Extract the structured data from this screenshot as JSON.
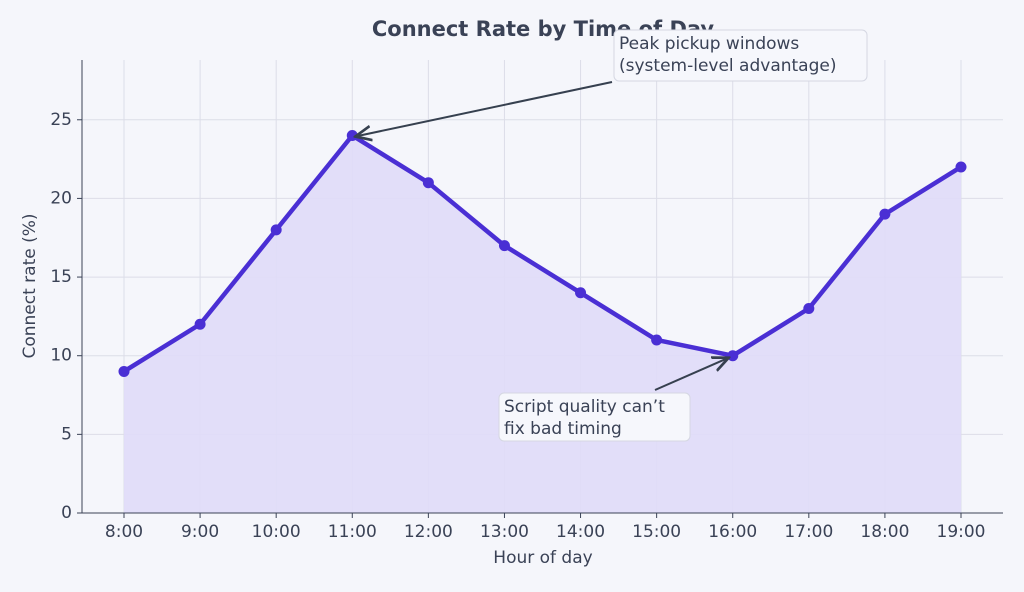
{
  "chart_data": {
    "type": "line",
    "title": "Connect Rate by Time of Day",
    "x_label": "Hour of day",
    "y_label": "Connect rate (%)",
    "categories": [
      "8:00",
      "9:00",
      "10:00",
      "11:00",
      "12:00",
      "13:00",
      "14:00",
      "15:00",
      "16:00",
      "17:00",
      "18:00",
      "19:00"
    ],
    "series": [
      {
        "name": "Connect rate",
        "color": "#4a2fd4",
        "fill": "#e0dcf8",
        "values": [
          9,
          12,
          18,
          24,
          21,
          17,
          14,
          11,
          10,
          13,
          19,
          22
        ]
      }
    ],
    "ylim": [
      0,
      28.8
    ],
    "yticks": [
      0,
      5,
      10,
      15,
      20,
      25
    ],
    "grid": true,
    "annotations": [
      {
        "lines": [
          "Peak pickup windows",
          "(system-level advantage)"
        ]
      },
      {
        "lines": [
          "Script quality can’t",
          "fix bad timing"
        ]
      }
    ]
  }
}
